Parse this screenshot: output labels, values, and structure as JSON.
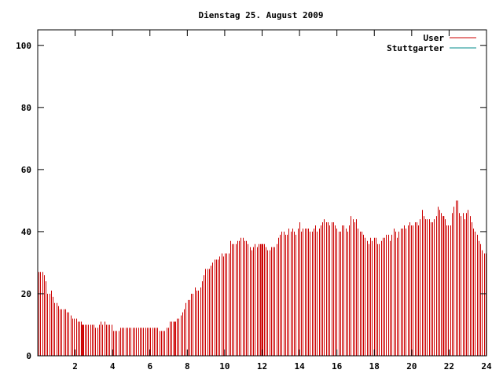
{
  "chart_data": {
    "type": "bar",
    "title": "Dienstag 25. August 2009",
    "xlabel": "",
    "ylabel": "",
    "xlim": [
      0,
      24
    ],
    "ylim": [
      0,
      105
    ],
    "x_ticks": [
      "2",
      "4",
      "6",
      "8",
      "10",
      "12",
      "14",
      "16",
      "18",
      "20",
      "22",
      "24"
    ],
    "y_ticks": [
      "0",
      "20",
      "40",
      "60",
      "80",
      "100"
    ],
    "legend_position": "top-right",
    "grid": false,
    "sample_interval_hours": 0.0833,
    "series": [
      {
        "name": "User",
        "color": "#cc0000",
        "values": [
          27,
          27,
          27,
          26,
          24,
          20,
          20,
          21,
          19,
          17,
          17,
          16,
          15,
          15,
          15,
          15,
          14,
          14,
          13,
          12,
          12,
          12,
          11,
          11,
          11,
          10,
          10,
          10,
          10,
          10,
          10,
          10,
          9,
          9,
          10,
          11,
          10,
          11,
          10,
          10,
          10,
          10,
          8,
          8,
          8,
          8,
          9,
          9,
          9,
          9,
          9,
          9,
          9,
          9,
          9,
          9,
          9,
          9,
          9,
          9,
          9,
          9,
          9,
          9,
          9,
          9,
          9,
          9,
          8,
          8,
          8,
          8,
          9,
          9,
          11,
          11,
          11,
          11,
          12,
          12,
          13,
          14,
          15,
          17,
          18,
          18,
          20,
          20,
          22,
          21,
          21,
          22,
          24,
          26,
          28,
          28,
          28,
          29,
          30,
          31,
          31,
          31,
          32,
          33,
          32,
          33,
          33,
          33,
          37,
          36,
          36,
          36,
          37,
          37,
          38,
          38,
          37,
          37,
          36,
          35,
          34,
          35,
          36,
          35,
          36,
          36,
          36,
          36,
          35,
          34,
          34,
          35,
          35,
          35,
          36,
          38,
          39,
          40,
          40,
          39,
          39,
          41,
          40,
          41,
          40,
          39,
          41,
          43,
          40,
          41,
          41,
          41,
          41,
          40,
          40,
          41,
          42,
          40,
          41,
          42,
          43,
          44,
          43,
          43,
          42,
          43,
          43,
          42,
          41,
          40,
          40,
          42,
          42,
          41,
          40,
          42,
          45,
          44,
          43,
          44,
          41,
          40,
          40,
          39,
          38,
          37,
          36,
          38,
          37,
          38,
          38,
          36,
          36,
          37,
          38,
          38,
          39,
          39,
          37,
          39,
          41,
          40,
          38,
          40,
          41,
          41,
          42,
          41,
          42,
          43,
          42,
          42,
          43,
          43,
          42,
          44,
          47,
          45,
          44,
          44,
          44,
          43,
          43,
          44,
          45,
          48,
          47,
          46,
          45,
          44,
          42,
          42,
          42,
          46,
          48,
          50,
          50,
          46,
          45,
          46,
          44,
          46,
          47,
          45,
          43,
          41,
          40,
          39,
          37,
          36,
          34,
          33,
          33
        ]
      },
      {
        "name": "Stuttgarter",
        "color": "#008b8b",
        "values": []
      }
    ],
    "highlight_times": [
      2.4,
      7.3,
      12.0,
      21.7
    ]
  }
}
